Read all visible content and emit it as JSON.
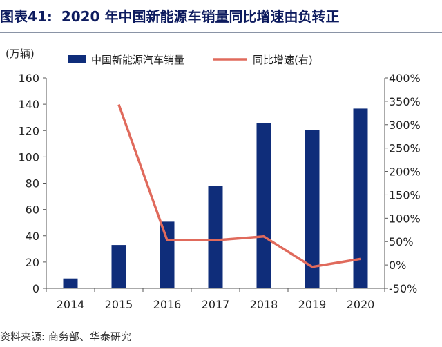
{
  "figure": {
    "label": "图表41:",
    "title": "2020 年中国新能源车销量同比增速由负转正",
    "source": "资料来源: 商务部、华泰研究"
  },
  "chart_data": {
    "type": "bar+line",
    "categories": [
      "2014",
      "2015",
      "2016",
      "2017",
      "2018",
      "2019",
      "2020"
    ],
    "series": [
      {
        "name": "中国新能源汽车销量",
        "type": "bar",
        "axis": "left",
        "color": "#0f2d7a",
        "values": [
          7.5,
          33,
          50.7,
          77.7,
          125.6,
          120.6,
          136.7
        ]
      },
      {
        "name": "同比增速(右)",
        "type": "line",
        "axis": "right",
        "color": "#e06a5c",
        "values": [
          null,
          343,
          53,
          53,
          61,
          -4,
          13
        ]
      }
    ],
    "y_left": {
      "unit_label": "(万辆)",
      "min": 0,
      "max": 160,
      "ticks": [
        "0",
        "20",
        "40",
        "60",
        "80",
        "100",
        "120",
        "140",
        "160"
      ]
    },
    "y_right": {
      "min": -50,
      "max": 400,
      "ticks": [
        "-50%",
        "0%",
        "50%",
        "100%",
        "150%",
        "200%",
        "250%",
        "300%",
        "350%",
        "400%"
      ]
    },
    "legend": "top",
    "grid": false
  }
}
